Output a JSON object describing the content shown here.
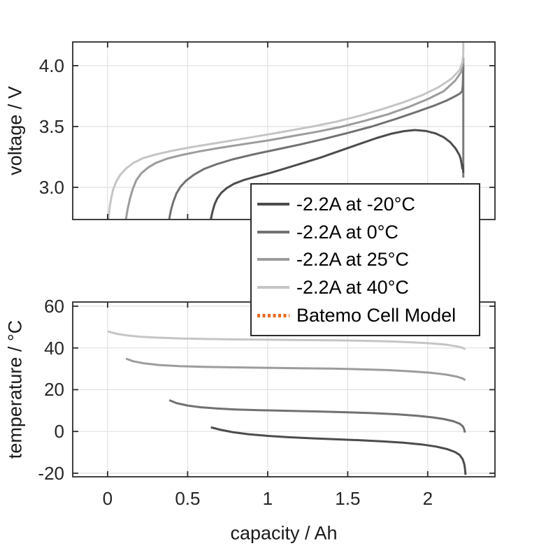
{
  "figure": {
    "background": "#ffffff",
    "axis_color": "#2b2b2b",
    "grid_color": "#e1e1e1",
    "tick_text_color": "#262626",
    "label_text_color": "#1a1a1a"
  },
  "labels": {
    "top_ylabel": "voltage / V",
    "bottom_ylabel": "temperature / °C",
    "xlabel": "capacity / Ah"
  },
  "legend": {
    "entries": [
      {
        "label": "-2.2A at -20°C",
        "color": "#4c4c4c",
        "style": "solid"
      },
      {
        "label": "-2.2A at 0°C",
        "color": "#717171",
        "style": "solid"
      },
      {
        "label": "-2.2A at 25°C",
        "color": "#9c9c9c",
        "style": "solid"
      },
      {
        "label": "-2.2A at 40°C",
        "color": "#c5c5c5",
        "style": "solid"
      },
      {
        "label": "Batemo Cell Model",
        "color": "#ec671b",
        "style": "dotted"
      }
    ]
  },
  "chart_data": [
    {
      "type": "line",
      "id": "voltage-vs-capacity",
      "ylabel": "voltage / V",
      "xlabel": "capacity / Ah",
      "grid": true,
      "xlim": [
        -0.218,
        2.42
      ],
      "ylim": [
        2.736,
        4.195
      ],
      "xticks": [
        0,
        0.5,
        1,
        1.5,
        2
      ],
      "xtick_labels": null,
      "yticks": [
        3.0,
        3.5,
        4.0
      ],
      "ytick_labels": [
        "3.0",
        "3.5",
        "4.0"
      ],
      "series": [
        {
          "id": "cutoff-line",
          "name": "end-of-discharge vertical",
          "color": "#7b7b7b",
          "width": 3,
          "points": [
            [
              2.222,
              3.08
            ],
            [
              2.222,
              4.07
            ]
          ]
        },
        {
          "id": "v-m20",
          "name": "-2.2A at -20°C",
          "color": "#4c4c4c",
          "width": 3,
          "points": [
            [
              0.645,
              2.74
            ],
            [
              0.655,
              2.8
            ],
            [
              0.668,
              2.86
            ],
            [
              0.685,
              2.91
            ],
            [
              0.71,
              2.955
            ],
            [
              0.745,
              2.995
            ],
            [
              0.79,
              3.03
            ],
            [
              0.85,
              3.06
            ],
            [
              0.93,
              3.09
            ],
            [
              1.02,
              3.12
            ],
            [
              1.12,
              3.16
            ],
            [
              1.22,
              3.2
            ],
            [
              1.33,
              3.245
            ],
            [
              1.45,
              3.3
            ],
            [
              1.57,
              3.355
            ],
            [
              1.68,
              3.405
            ],
            [
              1.77,
              3.44
            ],
            [
              1.85,
              3.462
            ],
            [
              1.92,
              3.471
            ],
            [
              1.99,
              3.463
            ],
            [
              2.05,
              3.443
            ],
            [
              2.1,
              3.412
            ],
            [
              2.14,
              3.372
            ],
            [
              2.175,
              3.318
            ],
            [
              2.196,
              3.27
            ],
            [
              2.205,
              3.24
            ],
            [
              2.212,
              3.19
            ],
            [
              2.216,
              3.155
            ],
            [
              2.219,
              3.185
            ],
            [
              2.222,
              3.12
            ]
          ]
        },
        {
          "id": "v-p0",
          "name": "-2.2A at 0°C",
          "color": "#717171",
          "width": 3,
          "points": [
            [
              0.385,
              2.74
            ],
            [
              0.395,
              2.81
            ],
            [
              0.41,
              2.88
            ],
            [
              0.43,
              2.95
            ],
            [
              0.455,
              3.005
            ],
            [
              0.49,
              3.055
            ],
            [
              0.54,
              3.105
            ],
            [
              0.6,
              3.15
            ],
            [
              0.68,
              3.19
            ],
            [
              0.78,
              3.23
            ],
            [
              0.9,
              3.268
            ],
            [
              1.05,
              3.31
            ],
            [
              1.2,
              3.352
            ],
            [
              1.35,
              3.398
            ],
            [
              1.5,
              3.447
            ],
            [
              1.65,
              3.5
            ],
            [
              1.8,
              3.562
            ],
            [
              1.93,
              3.62
            ],
            [
              2.04,
              3.672
            ],
            [
              2.12,
              3.715
            ],
            [
              2.17,
              3.748
            ],
            [
              2.2,
              3.77
            ],
            [
              2.215,
              3.79
            ],
            [
              2.219,
              3.84
            ],
            [
              2.221,
              3.91
            ],
            [
              2.222,
              3.99
            ]
          ]
        },
        {
          "id": "v-p25",
          "name": "-2.2A at 25°C",
          "color": "#9c9c9c",
          "width": 3,
          "points": [
            [
              0.115,
              2.74
            ],
            [
              0.125,
              2.82
            ],
            [
              0.14,
              2.91
            ],
            [
              0.158,
              2.99
            ],
            [
              0.18,
              3.06
            ],
            [
              0.21,
              3.115
            ],
            [
              0.25,
              3.16
            ],
            [
              0.3,
              3.2
            ],
            [
              0.37,
              3.235
            ],
            [
              0.46,
              3.265
            ],
            [
              0.57,
              3.295
            ],
            [
              0.7,
              3.325
            ],
            [
              0.85,
              3.355
            ],
            [
              1.0,
              3.385
            ],
            [
              1.15,
              3.42
            ],
            [
              1.3,
              3.455
            ],
            [
              1.45,
              3.495
            ],
            [
              1.6,
              3.545
            ],
            [
              1.75,
              3.6
            ],
            [
              1.88,
              3.66
            ],
            [
              2.0,
              3.725
            ],
            [
              2.1,
              3.79
            ],
            [
              2.17,
              3.875
            ],
            [
              2.21,
              3.95
            ],
            [
              2.222,
              4.04
            ]
          ]
        },
        {
          "id": "v-p40",
          "name": "-2.2A at 40°C",
          "color": "#c5c5c5",
          "width": 3,
          "points": [
            [
              0.005,
              2.74
            ],
            [
              0.012,
              2.83
            ],
            [
              0.022,
              2.91
            ],
            [
              0.035,
              2.985
            ],
            [
              0.055,
              3.05
            ],
            [
              0.08,
              3.105
            ],
            [
              0.115,
              3.155
            ],
            [
              0.16,
              3.2
            ],
            [
              0.22,
              3.24
            ],
            [
              0.3,
              3.27
            ],
            [
              0.4,
              3.3
            ],
            [
              0.52,
              3.33
            ],
            [
              0.66,
              3.36
            ],
            [
              0.82,
              3.395
            ],
            [
              0.98,
              3.43
            ],
            [
              1.13,
              3.465
            ],
            [
              1.28,
              3.5
            ],
            [
              1.43,
              3.54
            ],
            [
              1.58,
              3.59
            ],
            [
              1.72,
              3.645
            ],
            [
              1.85,
              3.7
            ],
            [
              1.97,
              3.76
            ],
            [
              2.07,
              3.825
            ],
            [
              2.15,
              3.895
            ],
            [
              2.2,
              3.965
            ],
            [
              2.217,
              4.03
            ],
            [
              2.222,
              4.1
            ],
            [
              2.222,
              4.195
            ]
          ]
        }
      ]
    },
    {
      "type": "line",
      "id": "temperature-vs-capacity",
      "ylabel": "temperature / °C",
      "xlabel": "capacity / Ah",
      "grid": true,
      "xlim": [
        -0.218,
        2.42
      ],
      "ylim": [
        -21.7,
        62.0
      ],
      "xticks": [
        0,
        0.5,
        1,
        1.5,
        2
      ],
      "xtick_labels": [
        "0",
        "0.5",
        "1",
        "1.5",
        "2"
      ],
      "yticks": [
        -20,
        0,
        20,
        40,
        60
      ],
      "ytick_labels": [
        "-20",
        "0",
        "20",
        "40",
        "60"
      ],
      "series": [
        {
          "id": "t-m20",
          "name": "-2.2A at -20°C",
          "color": "#4c4c4c",
          "width": 3,
          "points": [
            [
              0.645,
              2.0
            ],
            [
              0.7,
              0.9
            ],
            [
              0.78,
              -0.3
            ],
            [
              0.88,
              -1.3
            ],
            [
              1.0,
              -2.1
            ],
            [
              1.13,
              -2.75
            ],
            [
              1.28,
              -3.3
            ],
            [
              1.43,
              -3.75
            ],
            [
              1.58,
              -4.2
            ],
            [
              1.72,
              -4.75
            ],
            [
              1.85,
              -5.4
            ],
            [
              1.96,
              -6.2
            ],
            [
              2.05,
              -7.2
            ],
            [
              2.12,
              -8.4
            ],
            [
              2.17,
              -9.8
            ],
            [
              2.2,
              -11.3
            ],
            [
              2.218,
              -13.2
            ],
            [
              2.228,
              -15.5
            ],
            [
              2.233,
              -18.0
            ],
            [
              2.236,
              -20.8
            ]
          ]
        },
        {
          "id": "t-p0",
          "name": "-2.2A at 0°C",
          "color": "#717171",
          "width": 3,
          "points": [
            [
              0.385,
              15.0
            ],
            [
              0.43,
              13.6
            ],
            [
              0.5,
              12.4
            ],
            [
              0.58,
              11.6
            ],
            [
              0.68,
              11.0
            ],
            [
              0.8,
              10.55
            ],
            [
              0.95,
              10.2
            ],
            [
              1.12,
              9.9
            ],
            [
              1.3,
              9.6
            ],
            [
              1.48,
              9.25
            ],
            [
              1.65,
              8.8
            ],
            [
              1.8,
              8.25
            ],
            [
              1.93,
              7.55
            ],
            [
              2.03,
              6.75
            ],
            [
              2.1,
              5.95
            ],
            [
              2.16,
              4.9
            ],
            [
              2.2,
              3.7
            ],
            [
              2.22,
              2.4
            ],
            [
              2.228,
              1.0
            ],
            [
              2.232,
              -0.5
            ]
          ]
        },
        {
          "id": "t-p25",
          "name": "-2.2A at 25°C",
          "color": "#9c9c9c",
          "width": 3,
          "points": [
            [
              0.115,
              34.9
            ],
            [
              0.16,
              33.6
            ],
            [
              0.23,
              32.6
            ],
            [
              0.32,
              31.85
            ],
            [
              0.45,
              31.3
            ],
            [
              0.6,
              30.95
            ],
            [
              0.8,
              30.7
            ],
            [
              1.0,
              30.5
            ],
            [
              1.2,
              30.3
            ],
            [
              1.4,
              30.1
            ],
            [
              1.58,
              29.8
            ],
            [
              1.75,
              29.4
            ],
            [
              1.9,
              28.8
            ],
            [
              2.02,
              28.1
            ],
            [
              2.11,
              27.3
            ],
            [
              2.18,
              26.3
            ],
            [
              2.22,
              25.3
            ],
            [
              2.235,
              24.6
            ]
          ]
        },
        {
          "id": "t-p40",
          "name": "-2.2A at 40°C",
          "color": "#c5c5c5",
          "width": 3,
          "points": [
            [
              0.0,
              47.9
            ],
            [
              0.05,
              46.9
            ],
            [
              0.12,
              46.0
            ],
            [
              0.2,
              45.4
            ],
            [
              0.3,
              44.95
            ],
            [
              0.45,
              44.55
            ],
            [
              0.62,
              44.3
            ],
            [
              0.8,
              44.1
            ],
            [
              1.0,
              43.95
            ],
            [
              1.2,
              43.8
            ],
            [
              1.4,
              43.65
            ],
            [
              1.58,
              43.45
            ],
            [
              1.75,
              43.15
            ],
            [
              1.9,
              42.7
            ],
            [
              2.02,
              42.2
            ],
            [
              2.11,
              41.6
            ],
            [
              2.18,
              40.8
            ],
            [
              2.22,
              40.0
            ],
            [
              2.235,
              39.4
            ]
          ]
        }
      ]
    }
  ]
}
